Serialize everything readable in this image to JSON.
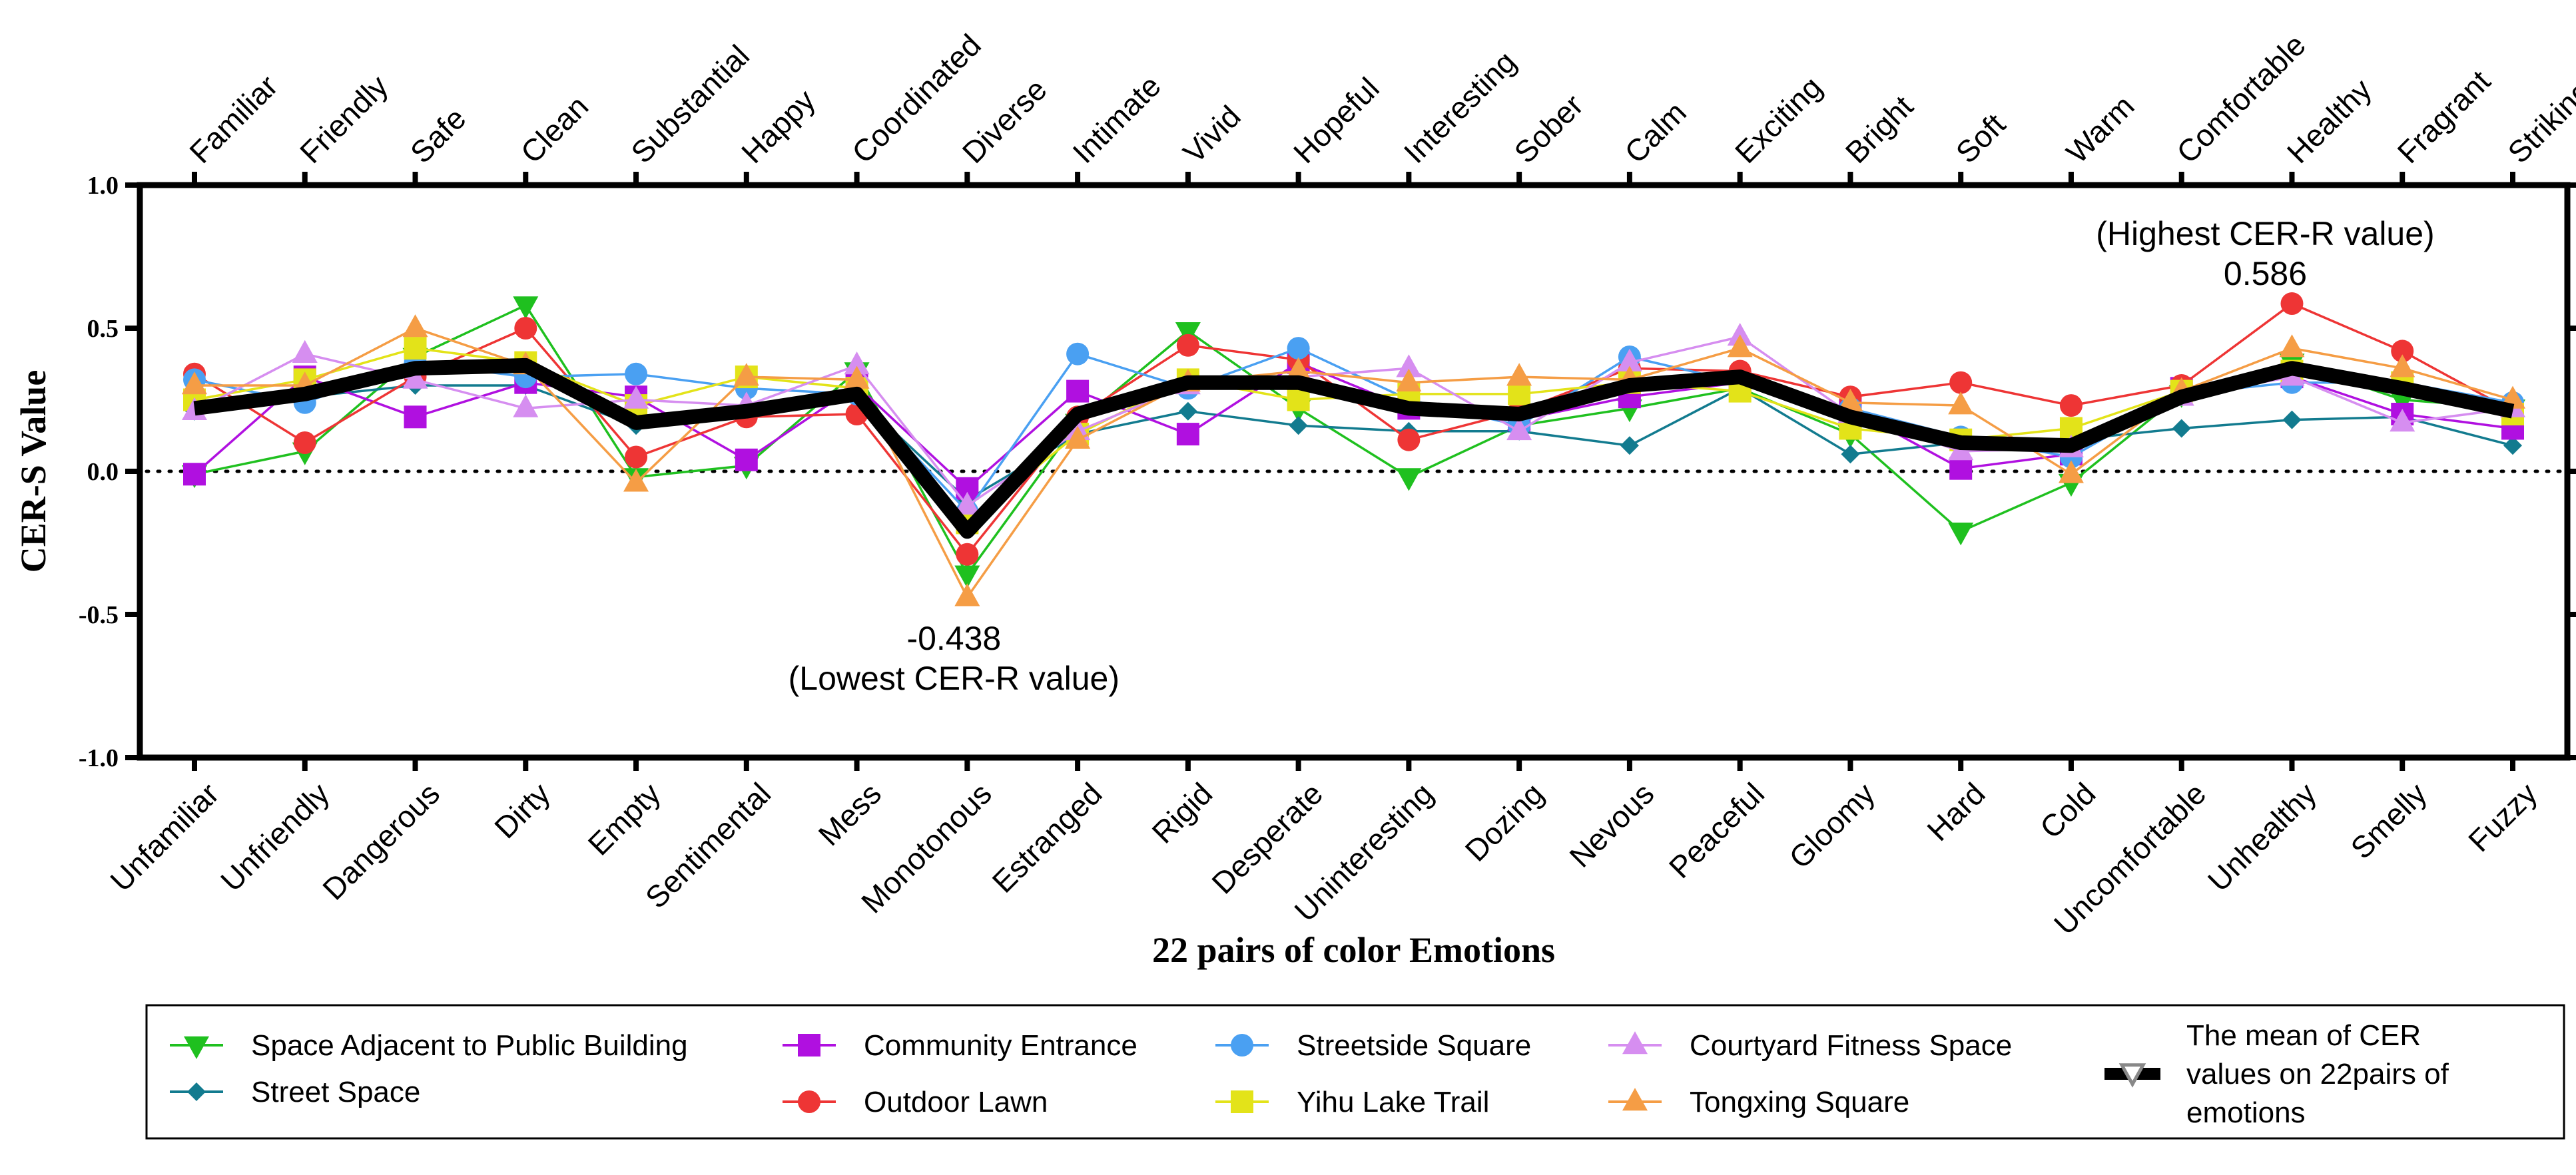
{
  "chart_data": {
    "type": "line",
    "xlabel": "22 pairs of color Emotions",
    "ylabel": "CER-S Value",
    "ylim": [
      -1.0,
      1.0
    ],
    "yticks": [
      {
        "value": 1.0,
        "label": "1.0"
      },
      {
        "value": 0.5,
        "label": "0.5"
      },
      {
        "value": 0.0,
        "label": "0.0"
      },
      {
        "value": -0.5,
        "label": "-0.5"
      },
      {
        "value": -1.0,
        "label": "-1.0"
      }
    ],
    "categories_top": [
      "Familiar",
      "Friendly",
      "Safe",
      "Clean",
      "Substantial",
      "Happy",
      "Coordinated",
      "Diverse",
      "Intimate",
      "Vivid",
      "Hopeful",
      "Interesting",
      "Sober",
      "Calm",
      "Exciting",
      "Bright",
      "Soft",
      "Warm",
      "Comfortable",
      "Healthy",
      "Fragrant",
      "Striking"
    ],
    "categories_bottom": [
      "Unfamiliar",
      "Unfriendly",
      "Dangerous",
      "Dirty",
      "Empty",
      "Sentimental",
      "Mess",
      "Monotonous",
      "Estranged",
      "Rigid",
      "Desperate",
      "Uninteresting",
      "Dozing",
      "Nevous",
      "Peaceful",
      "Gloomy",
      "Hard",
      "Cold",
      "Uncomfortable",
      "Unhealthy",
      "Smelly",
      "Fuzzy"
    ],
    "reference_line": {
      "value": 0.0,
      "style": "dotted"
    },
    "series": [
      {
        "name": "Space Adjacent to Public Building",
        "color": "#1fc01f",
        "marker": "triangle-down",
        "values": [
          -0.01,
          0.07,
          0.4,
          0.58,
          -0.02,
          0.02,
          0.35,
          -0.36,
          0.17,
          0.49,
          0.22,
          -0.02,
          0.16,
          0.22,
          0.29,
          0.13,
          -0.21,
          -0.04,
          0.27,
          0.38,
          0.25,
          0.22
        ]
      },
      {
        "name": "Street Space",
        "color": "#127b8f",
        "marker": "diamond",
        "values": [
          0.21,
          0.26,
          0.3,
          0.3,
          0.16,
          0.2,
          0.26,
          -0.1,
          0.13,
          0.21,
          0.16,
          0.14,
          0.14,
          0.09,
          0.29,
          0.06,
          0.1,
          0.11,
          0.15,
          0.18,
          0.19,
          0.09
        ]
      },
      {
        "name": "Community Entrance",
        "color": "#b010e0",
        "marker": "square",
        "values": [
          -0.01,
          0.33,
          0.19,
          0.31,
          0.26,
          0.04,
          0.3,
          -0.06,
          0.28,
          0.13,
          0.38,
          0.22,
          0.18,
          0.26,
          0.31,
          0.22,
          0.01,
          0.06,
          0.29,
          0.33,
          0.2,
          0.15
        ]
      },
      {
        "name": "Outdoor Lawn",
        "color": "#ee3535",
        "marker": "circle",
        "values": [
          0.34,
          0.1,
          0.33,
          0.5,
          0.05,
          0.19,
          0.2,
          -0.29,
          0.19,
          0.44,
          0.39,
          0.11,
          0.21,
          0.36,
          0.35,
          0.26,
          0.31,
          0.23,
          0.3,
          0.586,
          0.42,
          0.21
        ]
      },
      {
        "name": "Streetside Square",
        "color": "#4aa0f2",
        "marker": "circle",
        "values": [
          0.32,
          0.24,
          0.38,
          0.33,
          0.34,
          0.29,
          0.27,
          -0.14,
          0.41,
          0.29,
          0.43,
          0.25,
          0.16,
          0.4,
          0.31,
          0.22,
          0.12,
          0.05,
          0.27,
          0.31,
          0.31,
          0.24
        ]
      },
      {
        "name": "Yihu Lake Trail",
        "color": "#e3e319",
        "marker": "square",
        "values": [
          0.25,
          0.32,
          0.43,
          0.38,
          0.23,
          0.33,
          0.29,
          -0.18,
          0.13,
          0.32,
          0.25,
          0.27,
          0.27,
          0.31,
          0.28,
          0.15,
          0.11,
          0.15,
          0.28,
          0.35,
          0.31,
          0.2
        ]
      },
      {
        "name": "Courtyard Fitness Space",
        "color": "#d68ef0",
        "marker": "triangle-up",
        "values": [
          0.21,
          0.41,
          0.32,
          0.22,
          0.25,
          0.23,
          0.37,
          -0.12,
          0.14,
          0.3,
          0.33,
          0.36,
          0.14,
          0.38,
          0.47,
          0.2,
          0.07,
          0.08,
          0.26,
          0.33,
          0.17,
          0.22
        ]
      },
      {
        "name": "Tongxing Square",
        "color": "#f59d45",
        "marker": "triangle-up",
        "values": [
          0.3,
          0.3,
          0.5,
          0.37,
          -0.04,
          0.33,
          0.32,
          -0.44,
          0.11,
          0.31,
          0.35,
          0.31,
          0.33,
          0.32,
          0.43,
          0.24,
          0.23,
          -0.01,
          0.28,
          0.43,
          0.36,
          0.25
        ]
      },
      {
        "name": "The mean of CER values on 22pairs of emotions",
        "color": "#000000",
        "marker": "triangle-down-hollow",
        "bold": true,
        "values": [
          0.22,
          0.27,
          0.36,
          0.37,
          0.17,
          0.21,
          0.27,
          -0.21,
          0.2,
          0.31,
          0.31,
          0.22,
          0.2,
          0.3,
          0.33,
          0.19,
          0.1,
          0.09,
          0.26,
          0.36,
          0.29,
          0.21
        ]
      }
    ],
    "annotations": {
      "lowest_value": "-0.438",
      "lowest_label": "(Lowest CER-R value)",
      "highest_value": "0.586",
      "highest_label": "(Highest CER-R value)"
    },
    "legend": {
      "placement": "bottom",
      "mean_label_lines": [
        "The mean of CER",
        "values on 22pairs of",
        "emotions"
      ]
    }
  }
}
